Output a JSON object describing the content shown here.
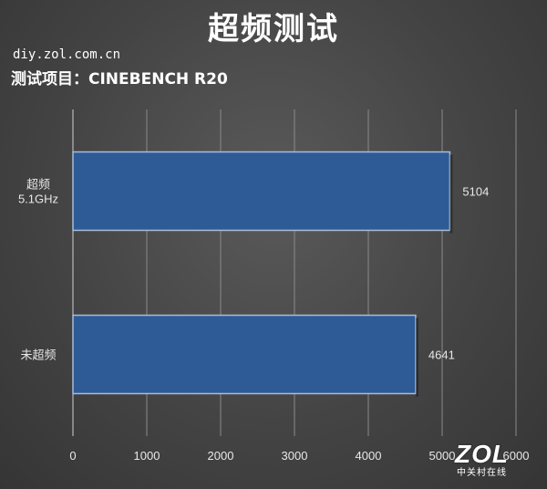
{
  "header": {
    "title": "超频测试",
    "source": "diy.zol.com.cn",
    "subject": "测试项目：CINEBENCH R20"
  },
  "watermark": {
    "logo": "ZOL",
    "sub": "中关村在线"
  },
  "colors": {
    "bar_fill": "#2e5a96",
    "bar_stroke": "#a9bcd8",
    "grid": "#8a8a8a",
    "text": "#e8e8e8"
  },
  "chart_data": {
    "type": "bar",
    "orientation": "horizontal",
    "categories": [
      "超频\n5.1GHz",
      "未超频"
    ],
    "values": [
      5104,
      4641
    ],
    "xlim": [
      0,
      6000
    ],
    "xticks": [
      0,
      1000,
      2000,
      3000,
      4000,
      5000,
      6000
    ],
    "grid": true,
    "legend": "none"
  }
}
